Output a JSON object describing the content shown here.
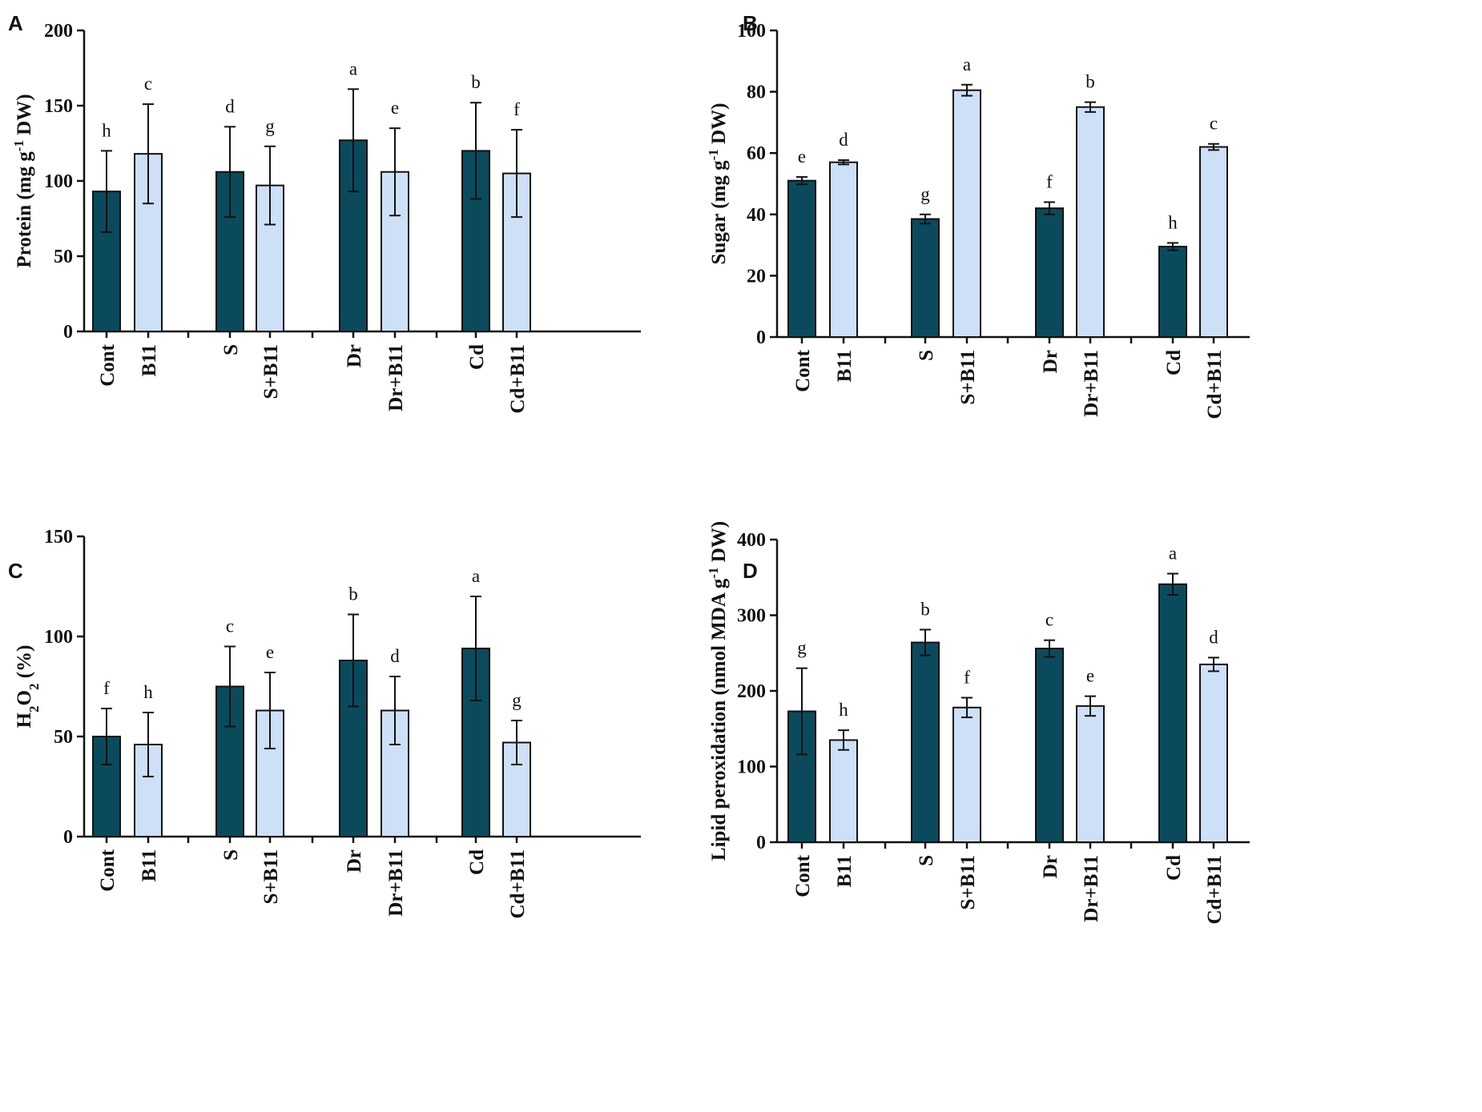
{
  "colors": {
    "dark_bar": "#0b4a5d",
    "light_bar": "#cde0f7"
  },
  "chart_data": [
    {
      "panel": "A",
      "type": "bar",
      "ylabel_main": "Protein (mg g",
      "ylabel_sup": "-1",
      "ylabel_tail": " DW)",
      "ylim": [
        0,
        200
      ],
      "yticks": [
        0,
        50,
        100,
        150,
        200
      ],
      "categories": [
        "Cont",
        "B11",
        "S",
        "S+B11",
        "Dr",
        "Dr+B11",
        "Cd",
        "Cd+B11"
      ],
      "groups": [
        [
          "Cont",
          "B11"
        ],
        [
          "S",
          "S+B11"
        ],
        [
          "Dr",
          "Dr+B11"
        ],
        [
          "Cd",
          "Cd+B11"
        ]
      ],
      "values": [
        93,
        118,
        106,
        97,
        127,
        106,
        120,
        105
      ],
      "errors": [
        27,
        33,
        30,
        26,
        34,
        29,
        32,
        29
      ],
      "letters": [
        "h",
        "c",
        "d",
        "g",
        "a",
        "e",
        "b",
        "f"
      ]
    },
    {
      "panel": "B",
      "type": "bar",
      "ylabel_main": "Sugar (mg g",
      "ylabel_sup": "-1",
      "ylabel_tail": " DW)",
      "ylim": [
        0,
        100
      ],
      "yticks": [
        0,
        20,
        40,
        60,
        80,
        100
      ],
      "categories": [
        "Cont",
        "B11",
        "S",
        "S+B11",
        "Dr",
        "Dr+B11",
        "Cd",
        "Cd+B11"
      ],
      "groups": [
        [
          "Cont",
          "B11"
        ],
        [
          "S",
          "S+B11"
        ],
        [
          "Dr",
          "Dr+B11"
        ],
        [
          "Cd",
          "Cd+B11"
        ]
      ],
      "values": [
        51,
        57,
        38.5,
        80.5,
        42,
        75,
        29.5,
        62
      ],
      "errors": [
        1.2,
        0.7,
        1.5,
        1.8,
        2,
        1.6,
        1.2,
        1
      ],
      "letters": [
        "e",
        "d",
        "g",
        "a",
        "f",
        "b",
        "h",
        "c"
      ]
    },
    {
      "panel": "C",
      "type": "bar",
      "ylabel_main": "H",
      "ylabel_sub1": "2",
      "ylabel_mid": "O",
      "ylabel_sub2": "2",
      "ylabel_tail": " (%)",
      "ylim": [
        0,
        150
      ],
      "yticks": [
        0,
        50,
        100,
        150
      ],
      "categories": [
        "Cont",
        "B11",
        "S",
        "S+B11",
        "Dr",
        "Dr+B11",
        "Cd",
        "Cd+B11"
      ],
      "groups": [
        [
          "Cont",
          "B11"
        ],
        [
          "S",
          "S+B11"
        ],
        [
          "Dr",
          "Dr+B11"
        ],
        [
          "Cd",
          "Cd+B11"
        ]
      ],
      "values": [
        50,
        46,
        75,
        63,
        88,
        63,
        94,
        47
      ],
      "errors": [
        14,
        16,
        20,
        19,
        23,
        17,
        26,
        11
      ],
      "letters": [
        "f",
        "h",
        "c",
        "e",
        "b",
        "d",
        "a",
        "g"
      ]
    },
    {
      "panel": "D",
      "type": "bar",
      "ylabel_main": "Lipid peroxidation (nmol MDA g",
      "ylabel_sup": "-1",
      "ylabel_tail": " DW)",
      "ylim": [
        0,
        400
      ],
      "yticks": [
        0,
        100,
        200,
        300,
        400
      ],
      "categories": [
        "Cont",
        "B11",
        "S",
        "S+B11",
        "Dr",
        "Dr+B11",
        "Cd",
        "Cd+B11"
      ],
      "groups": [
        [
          "Cont",
          "B11"
        ],
        [
          "S",
          "S+B11"
        ],
        [
          "Dr",
          "Dr+B11"
        ],
        [
          "Cd",
          "Cd+B11"
        ]
      ],
      "values": [
        173,
        135,
        264,
        178,
        256,
        180,
        341,
        235
      ],
      "errors": [
        57,
        13,
        17,
        13,
        11,
        13,
        14,
        9
      ],
      "letters": [
        "g",
        "h",
        "b",
        "f",
        "c",
        "e",
        "a",
        "d"
      ]
    }
  ]
}
